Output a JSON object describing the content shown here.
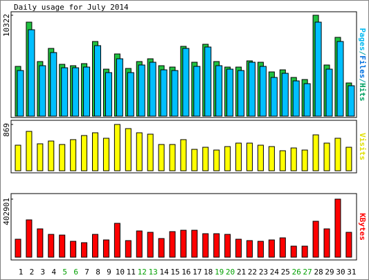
{
  "title": "Daily usage for July 2014",
  "chart_data": [
    {
      "type": "bar",
      "pages_label": {
        "text": "Pages",
        "color": "#00b8f0"
      },
      "separator": "/",
      "series": [
        {
          "name": "Files",
          "color": "#00bfff",
          "label_color": "#0070e0",
          "values": [
            4666,
            8837,
            5161,
            6504,
            4949,
            4949,
            5020,
            7211,
            4454,
            5868,
            4454,
            5232,
            5514,
            4737,
            4666,
            6928,
            5090,
            7070,
            5161,
            4807,
            4666,
            5514,
            5090,
            3959,
            4383,
            3606,
            3323,
            9615,
            4807,
            7635,
            3111
          ]
        },
        {
          "name": "Hits",
          "color": "#20c040",
          "label_color": "#00a060",
          "values": [
            5090,
            9615,
            5585,
            6928,
            5302,
            5161,
            5373,
            7635,
            4807,
            6363,
            4878,
            5585,
            5868,
            5161,
            5020,
            7140,
            5514,
            7352,
            5585,
            5020,
            5020,
            5656,
            5514,
            4525,
            4737,
            3959,
            3747,
            10322,
            5232,
            8060,
            3394
          ]
        }
      ],
      "ylim": [
        0,
        10322
      ],
      "yticks": [
        10322
      ]
    },
    {
      "type": "bar",
      "series": [
        {
          "name": "Visits",
          "color": "#ffff00",
          "label_color": "#e0e000",
          "values": [
            480,
            739,
            506,
            558,
            493,
            584,
            661,
            713,
            610,
            869,
            791,
            713,
            687,
            493,
            493,
            584,
            402,
            441,
            389,
            454,
            519,
            519,
            480,
            454,
            376,
            428,
            389,
            674,
            519,
            610,
            441
          ]
        }
      ],
      "ylim": [
        0,
        869
      ],
      "yticks": [
        869
      ]
    },
    {
      "type": "bar",
      "series": [
        {
          "name": "KBytes",
          "color": "#ff0000",
          "label_color": "#ff0000",
          "values": [
            124700,
            259000,
            196600,
            158300,
            153500,
            110300,
            100700,
            158300,
            119900,
            235000,
            115100,
            182200,
            172700,
            129500,
            177500,
            187000,
            187000,
            163100,
            163100,
            158300,
            124700,
            115100,
            110300,
            119900,
            134300,
            76700,
            76700,
            249400,
            196600,
            402901,
            172700
          ]
        }
      ],
      "ylim": [
        0,
        402901
      ],
      "yticks": [
        402901
      ],
      "categories": [
        "1",
        "2",
        "3",
        "4",
        "5",
        "6",
        "7",
        "8",
        "9",
        "10",
        "11",
        "12",
        "13",
        "14",
        "15",
        "16",
        "17",
        "18",
        "19",
        "20",
        "21",
        "22",
        "23",
        "24",
        "25",
        "26",
        "27",
        "28",
        "29",
        "30",
        "31"
      ],
      "category_colors": [
        "#000",
        "#000",
        "#000",
        "#000",
        "#00a000",
        "#00a000",
        "#000",
        "#000",
        "#000",
        "#000",
        "#000",
        "#00a000",
        "#00a000",
        "#000",
        "#000",
        "#000",
        "#000",
        "#000",
        "#00a000",
        "#00a000",
        "#000",
        "#000",
        "#000",
        "#000",
        "#000",
        "#00a000",
        "#00a000",
        "#000",
        "#000",
        "#000",
        "#000"
      ]
    }
  ]
}
